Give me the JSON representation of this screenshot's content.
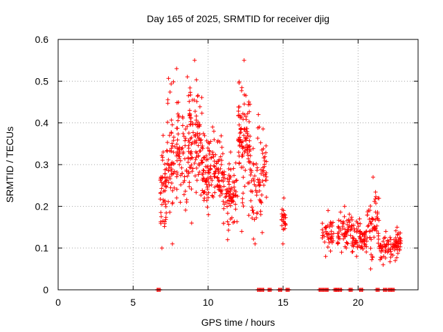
{
  "chart_data": {
    "type": "scatter",
    "title": "Day 165 of 2025, SRMTID for receiver djig",
    "xlabel": "GPS time / hours",
    "ylabel": "SRMTID / TECUs",
    "xlim": [
      0,
      24
    ],
    "ylim": [
      0,
      0.6
    ],
    "xticks": [
      0,
      5,
      10,
      15,
      20
    ],
    "yticks": [
      0,
      0.1,
      0.2,
      0.3,
      0.4,
      0.5,
      0.6
    ],
    "xtick_labels": [
      "0",
      "5",
      "10",
      "15",
      "20"
    ],
    "ytick_labels": [
      "0",
      "0.1",
      "0.2",
      "0.3",
      "0.4",
      "0.5",
      "0.6"
    ],
    "grid": true,
    "marker": "+",
    "color": "#ff0000",
    "clusters": [
      {
        "x_start": 6.8,
        "x_end": 7.2,
        "y_min": 0.1,
        "y_max": 0.37,
        "n": 45
      },
      {
        "x_start": 7.2,
        "x_end": 8.6,
        "y_min": 0.11,
        "y_max": 0.53,
        "n": 120
      },
      {
        "x_start": 8.6,
        "x_end": 9.6,
        "y_min": 0.16,
        "y_max": 0.55,
        "n": 110
      },
      {
        "x_start": 9.6,
        "x_end": 11.0,
        "y_min": 0.18,
        "y_max": 0.39,
        "n": 130
      },
      {
        "x_start": 11.0,
        "x_end": 12.0,
        "y_min": 0.12,
        "y_max": 0.33,
        "n": 80
      },
      {
        "x_start": 12.0,
        "x_end": 12.8,
        "y_min": 0.14,
        "y_max": 0.55,
        "n": 100
      },
      {
        "x_start": 12.8,
        "x_end": 13.9,
        "y_min": 0.11,
        "y_max": 0.42,
        "n": 80
      },
      {
        "x_start": 14.9,
        "x_end": 15.2,
        "y_min": 0.11,
        "y_max": 0.22,
        "n": 22
      },
      {
        "x_start": 17.6,
        "x_end": 18.4,
        "y_min": 0.08,
        "y_max": 0.19,
        "n": 40
      },
      {
        "x_start": 18.6,
        "x_end": 19.6,
        "y_min": 0.09,
        "y_max": 0.2,
        "n": 60
      },
      {
        "x_start": 19.6,
        "x_end": 20.6,
        "y_min": 0.08,
        "y_max": 0.17,
        "n": 70
      },
      {
        "x_start": 20.6,
        "x_end": 21.4,
        "y_min": 0.05,
        "y_max": 0.27,
        "n": 55
      },
      {
        "x_start": 21.4,
        "x_end": 22.3,
        "y_min": 0.06,
        "y_max": 0.14,
        "n": 45
      },
      {
        "x_start": 22.3,
        "x_end": 22.9,
        "y_min": 0.07,
        "y_max": 0.15,
        "n": 40
      }
    ],
    "zero_points_x": [
      6.7,
      13.4,
      13.6,
      14.1,
      14.8,
      15.3,
      17.5,
      17.7,
      17.9,
      18.5,
      18.6,
      18.8,
      19.5,
      20.2,
      21.3,
      21.8,
      22.1,
      22.3
    ]
  }
}
